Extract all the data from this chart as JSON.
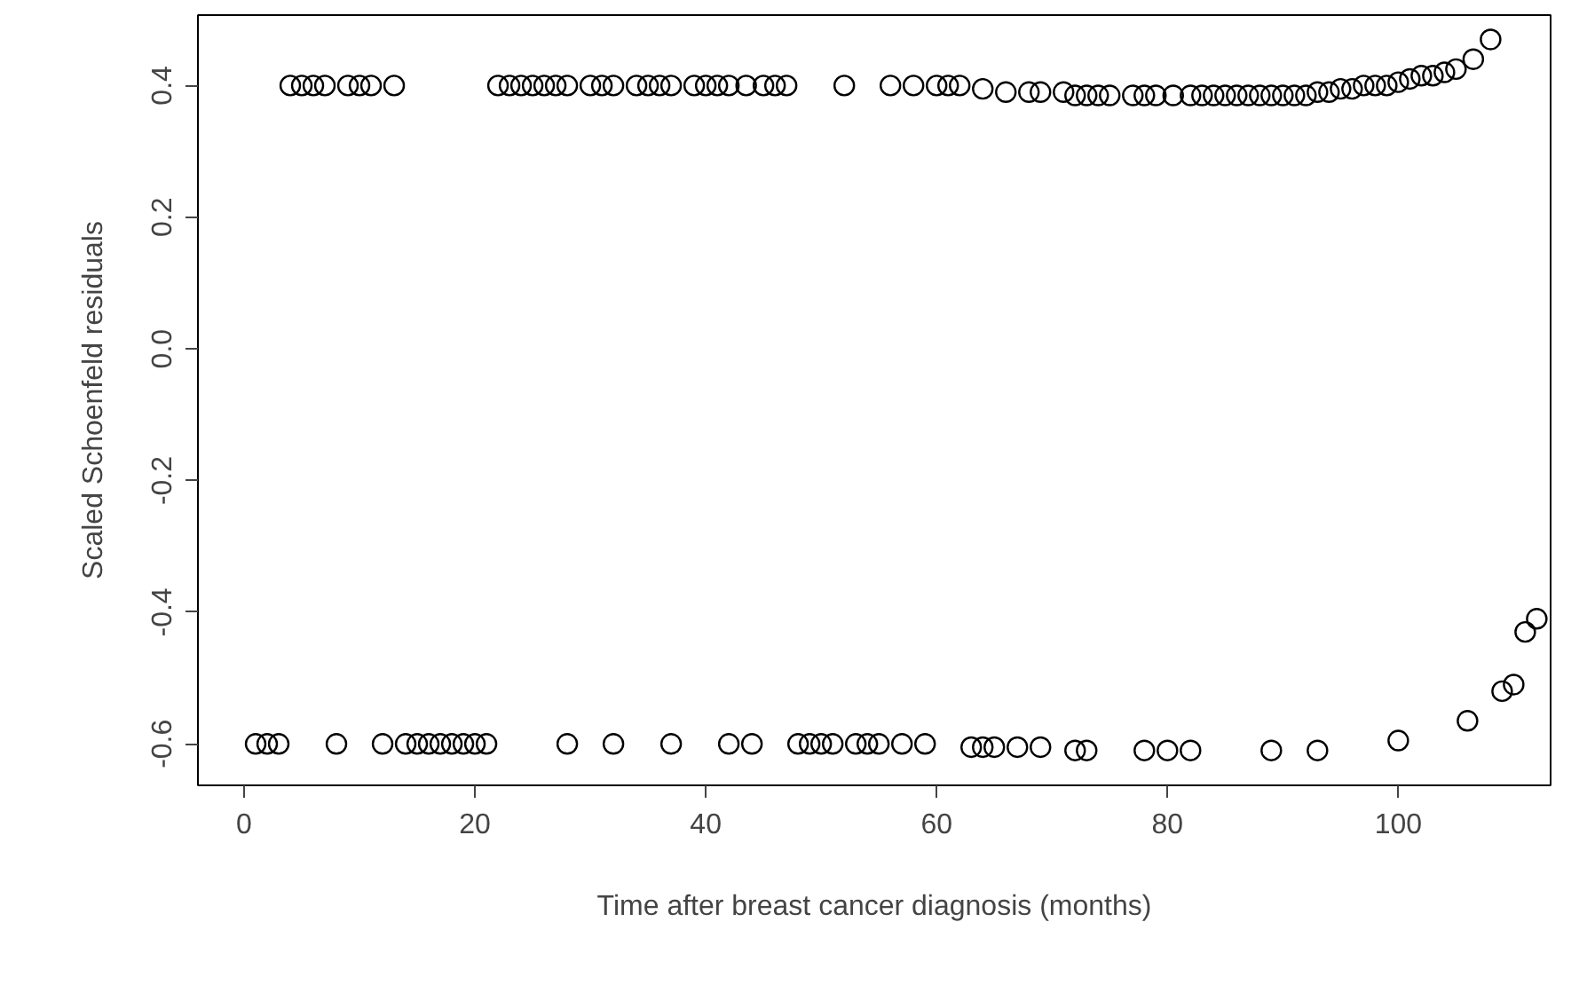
{
  "chart_data": {
    "type": "scatter",
    "xlabel": "Time after breast cancer diagnosis (months)",
    "ylabel": "Scaled Schoenfeld residuals",
    "xlim": [
      -4,
      113.2
    ],
    "ylim": [
      -0.663,
      0.507
    ],
    "xticks": [
      0,
      20,
      40,
      60,
      80,
      100
    ],
    "yticks": [
      {
        "value": -0.6,
        "label": "-0.6"
      },
      {
        "value": -0.4,
        "label": "-0.4"
      },
      {
        "value": -0.2,
        "label": "-0.2"
      },
      {
        "value": 0,
        "label": "0.0"
      },
      {
        "value": 0.2,
        "label": "0.2"
      },
      {
        "value": 0.4,
        "label": "0.4"
      }
    ],
    "marker": "circle",
    "grid": false,
    "series": [
      {
        "color": "#000000",
        "x": [
          4,
          5,
          6,
          7,
          9,
          10,
          11,
          13,
          22,
          23,
          24,
          25,
          26,
          27,
          28,
          30,
          31,
          32,
          34,
          35,
          36,
          37,
          39,
          40,
          41,
          42,
          43.5,
          45,
          46,
          47,
          52,
          56,
          58,
          60,
          61,
          62,
          64,
          66,
          68,
          69,
          71,
          72,
          73,
          74,
          75,
          77,
          78,
          79,
          80.5,
          82,
          83,
          84,
          85,
          86,
          87,
          88,
          89,
          90,
          91,
          92,
          93,
          94,
          95,
          96,
          97,
          98,
          99,
          100,
          101,
          102,
          103,
          104,
          105,
          106.5,
          108
        ],
        "values": [
          0.4,
          0.4,
          0.4,
          0.4,
          0.4,
          0.4,
          0.4,
          0.4,
          0.4,
          0.4,
          0.4,
          0.4,
          0.4,
          0.4,
          0.4,
          0.4,
          0.4,
          0.4,
          0.4,
          0.4,
          0.4,
          0.4,
          0.4,
          0.4,
          0.4,
          0.4,
          0.4,
          0.4,
          0.4,
          0.4,
          0.4,
          0.4,
          0.4,
          0.4,
          0.4,
          0.4,
          0.395,
          0.39,
          0.39,
          0.39,
          0.39,
          0.385,
          0.385,
          0.385,
          0.385,
          0.385,
          0.385,
          0.385,
          0.385,
          0.385,
          0.385,
          0.385,
          0.385,
          0.385,
          0.385,
          0.385,
          0.385,
          0.385,
          0.385,
          0.385,
          0.39,
          0.39,
          0.395,
          0.395,
          0.4,
          0.4,
          0.4,
          0.405,
          0.41,
          0.415,
          0.415,
          0.42,
          0.425,
          0.44,
          0.47
        ]
      },
      {
        "color": "#000000",
        "x": [
          1,
          2,
          3,
          8,
          12,
          14,
          15,
          16,
          17,
          18,
          19,
          20,
          21,
          28,
          32,
          37,
          42,
          44,
          48,
          49,
          50,
          51,
          53,
          54,
          55,
          57,
          59,
          63,
          64,
          65,
          67,
          69,
          72,
          73,
          78,
          80,
          82,
          89,
          93,
          100,
          106,
          109,
          110,
          111,
          112
        ],
        "values": [
          -0.6,
          -0.6,
          -0.6,
          -0.6,
          -0.6,
          -0.6,
          -0.6,
          -0.6,
          -0.6,
          -0.6,
          -0.6,
          -0.6,
          -0.6,
          -0.6,
          -0.6,
          -0.6,
          -0.6,
          -0.6,
          -0.6,
          -0.6,
          -0.6,
          -0.6,
          -0.6,
          -0.6,
          -0.6,
          -0.6,
          -0.6,
          -0.605,
          -0.605,
          -0.605,
          -0.605,
          -0.605,
          -0.61,
          -0.61,
          -0.61,
          -0.61,
          -0.61,
          -0.61,
          -0.61,
          -0.595,
          -0.565,
          -0.52,
          -0.51,
          -0.43,
          -0.41
        ]
      }
    ]
  }
}
